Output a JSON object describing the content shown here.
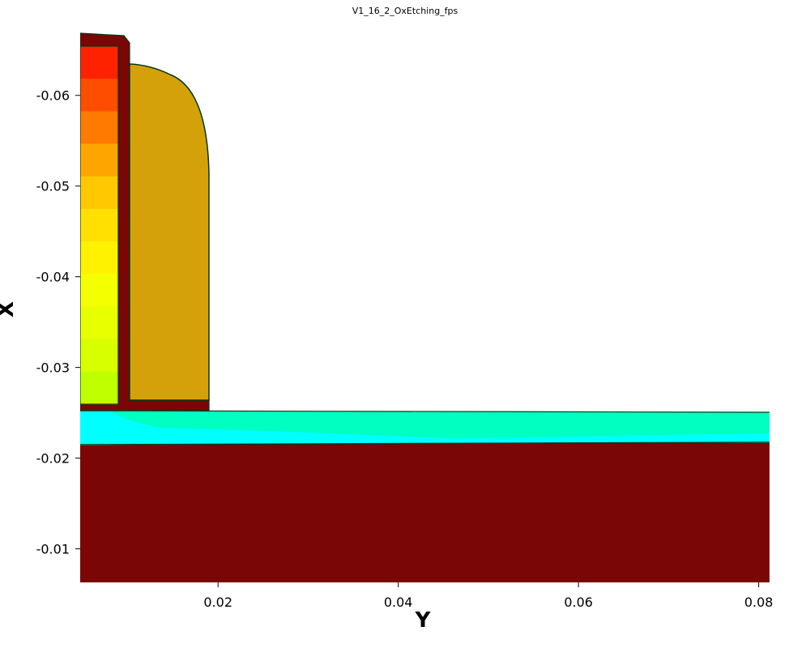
{
  "title": "V1_16_2_OxEtching_fps",
  "xaxis": {
    "label": "Y",
    "ticks": [
      {
        "value": 0.02,
        "label": "0.02"
      },
      {
        "value": 0.04,
        "label": "0.04"
      },
      {
        "value": 0.06,
        "label": "0.06"
      },
      {
        "value": 0.08,
        "label": "0.08"
      }
    ],
    "range": [
      0.0047,
      0.0812
    ]
  },
  "yaxis": {
    "label": "X",
    "ticks": [
      {
        "value": -0.06,
        "label": "-0.06"
      },
      {
        "value": -0.05,
        "label": "-0.05"
      },
      {
        "value": -0.04,
        "label": "-0.04"
      },
      {
        "value": -0.03,
        "label": "-0.03"
      },
      {
        "value": -0.02,
        "label": "-0.02"
      },
      {
        "value": -0.01,
        "label": "-0.01"
      }
    ],
    "range": [
      -0.0673,
      -0.0063
    ]
  },
  "colors": {
    "substrate": "#7b0606",
    "spacer": "#d4a10a",
    "oxide_cyan": "#00ffff",
    "oxide_green": "#00ffc0",
    "outline": "#003a1a",
    "gate_gradient": [
      "#ff2200",
      "#ff4d00",
      "#ff7a00",
      "#ffa500",
      "#ffc800",
      "#ffe000",
      "#fff200",
      "#f4ff00",
      "#e8ff00",
      "#d8ff00",
      "#c0ff00"
    ]
  }
}
